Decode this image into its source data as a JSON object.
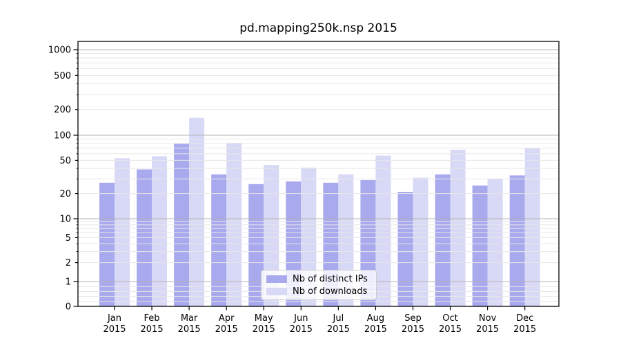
{
  "chart_data": {
    "type": "bar",
    "title": "pd.mapping250k.nsp 2015",
    "year_label": "2015",
    "categories": [
      "Jan",
      "Feb",
      "Mar",
      "Apr",
      "May",
      "Jun",
      "Jul",
      "Aug",
      "Sep",
      "Oct",
      "Nov",
      "Dec"
    ],
    "series": [
      {
        "name": "Nb of distinct IPs",
        "color": "#a9a9ee",
        "values": [
          27,
          39,
          79,
          34,
          26,
          28,
          27,
          29,
          21,
          34,
          25,
          33
        ]
      },
      {
        "name": "Nb of downloads",
        "color": "#d8d8f7",
        "values": [
          53,
          56,
          160,
          81,
          44,
          41,
          34,
          57,
          31,
          67,
          30,
          70
        ]
      }
    ],
    "yscale": "symlog",
    "ylim": [
      0,
      1200
    ],
    "yticks_labeled": [
      0,
      1,
      2,
      5,
      10,
      20,
      50,
      100,
      200,
      500,
      1000
    ],
    "yticks_major": [
      1,
      10,
      100,
      1000
    ],
    "grid": true,
    "grid_over_bars": true,
    "legend_position": "lower-center-inside",
    "xlabel": "",
    "ylabel": ""
  },
  "legend": {
    "items": [
      {
        "label": "Nb of distinct IPs"
      },
      {
        "label": "Nb of downloads"
      }
    ]
  },
  "colors": {
    "background": "#ffffff",
    "axis": "#000000",
    "text": "#000000",
    "grid_major": "#b3b3b3",
    "grid_minor": "#e7e7e7",
    "bar_ips": "#a9a9ee",
    "bar_downloads": "#d8d8f7",
    "legend_border": "#cccccc"
  }
}
